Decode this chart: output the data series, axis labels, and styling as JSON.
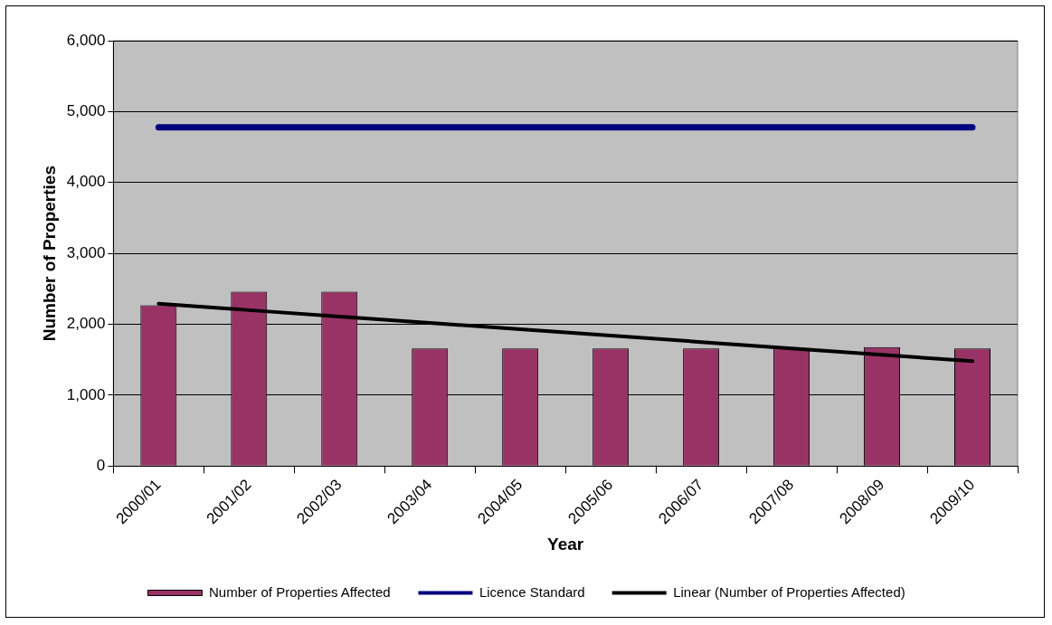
{
  "chart_data": {
    "type": "bar",
    "xlabel": "Year",
    "ylabel": "Number of Properties",
    "categories": [
      "2000/01",
      "2001/02",
      "2002/03",
      "2003/04",
      "2004/05",
      "2005/06",
      "2006/07",
      "2007/08",
      "2008/09",
      "2009/10"
    ],
    "series": [
      {
        "name": "Number of Properties Affected",
        "type": "bar",
        "color": "#993366",
        "values": [
          2270,
          2460,
          2460,
          1660,
          1660,
          1660,
          1660,
          1660,
          1680,
          1660
        ]
      },
      {
        "name": "Licence Standard",
        "type": "line",
        "color": "#000080",
        "values": [
          4780,
          4780,
          4780,
          4780,
          4780,
          4780,
          4780,
          4780,
          4780,
          4780
        ]
      },
      {
        "name": "Linear (Number of Properties Affected)",
        "type": "line",
        "color": "#000000",
        "values": [
          2290,
          2200,
          2110,
          2020,
          1930,
          1840,
          1750,
          1660,
          1570,
          1480
        ]
      }
    ],
    "ylim": [
      0,
      6000
    ],
    "yticks": [
      0,
      {
        "value": 1000,
        "label": "1,000"
      },
      {
        "value": 2000,
        "label": "2,000"
      },
      {
        "value": 3000,
        "label": "3,000"
      },
      {
        "value": 4000,
        "label": "4,000"
      },
      {
        "value": 5000,
        "label": "5,000"
      },
      {
        "value": 6000,
        "label": "6,000"
      }
    ],
    "grid": "y",
    "legend": "bottom",
    "marker": "none",
    "line_style": "solid"
  }
}
